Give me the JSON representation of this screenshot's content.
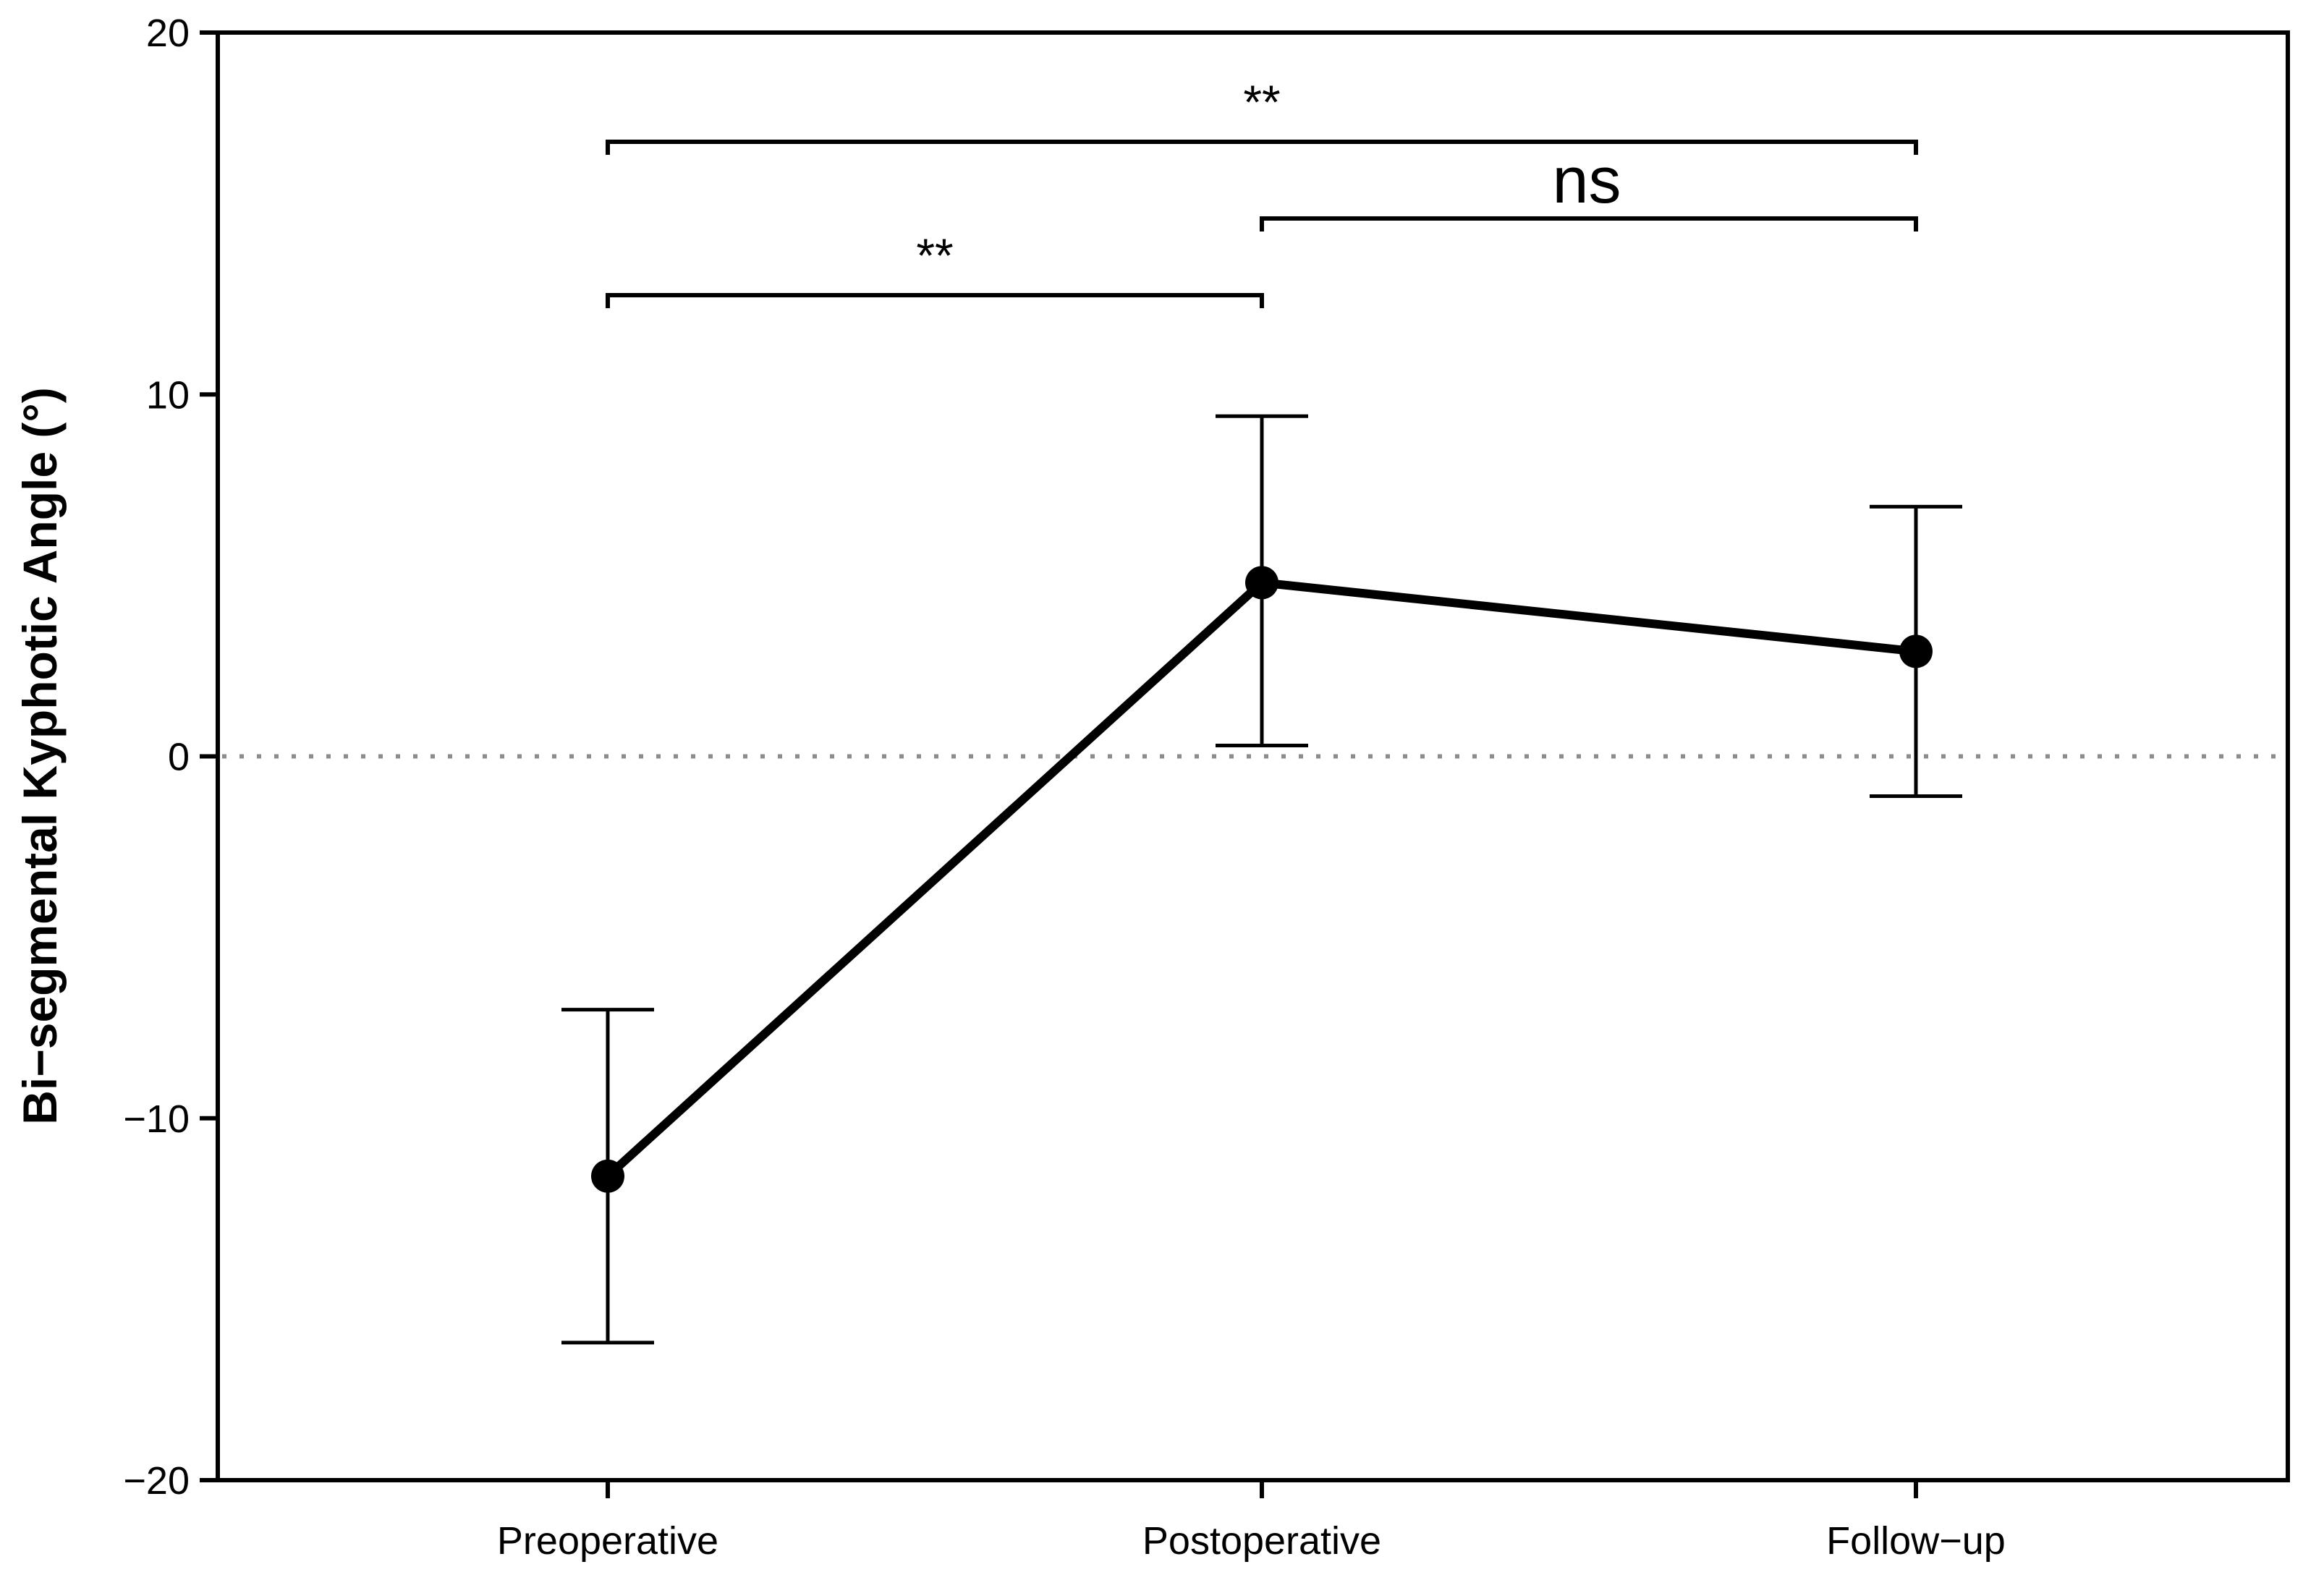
{
  "chart_data": {
    "type": "line",
    "title": "",
    "xlabel": "",
    "ylabel": "Bi−segmental Kyphotic Angle (°)",
    "ylim": [
      -20,
      20
    ],
    "yticks": [
      20,
      10,
      0,
      -10,
      -20
    ],
    "ytick_labels": [
      "20",
      "10",
      "0",
      "−10",
      "−20"
    ],
    "categories": [
      "Preoperative",
      "Postoperative",
      "Follow−up"
    ],
    "series": [
      {
        "values": [
          -11.6,
          4.8,
          2.9
        ],
        "error_upper": [
          -7.0,
          9.4,
          6.9
        ],
        "error_lower": [
          -16.2,
          0.3,
          -1.1
        ]
      }
    ],
    "reference_line": {
      "y": 0,
      "style": "dotted"
    },
    "significance": [
      {
        "from": 0,
        "to": 2,
        "label": "**"
      },
      {
        "from": 1,
        "to": 2,
        "label": "ns"
      },
      {
        "from": 0,
        "to": 1,
        "label": "**"
      }
    ],
    "grid": false,
    "colors": {
      "line": "#000000",
      "reference": "#8c8c8c"
    }
  }
}
